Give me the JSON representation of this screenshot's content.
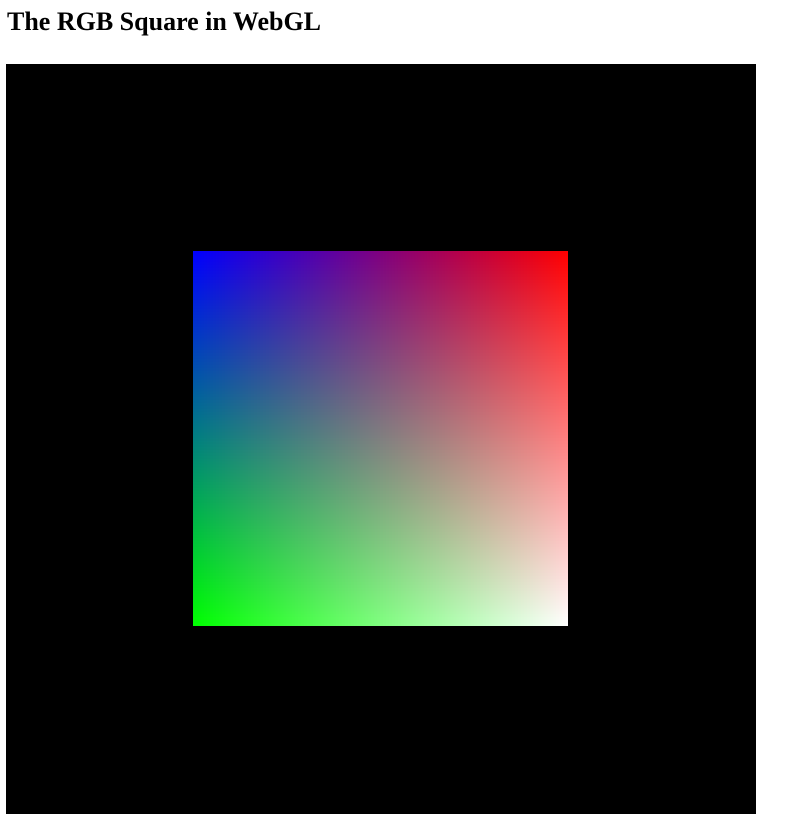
{
  "page": {
    "title": "The RGB Square in WebGL"
  },
  "canvas": {
    "background_color": "#000000"
  },
  "square": {
    "corner_colors": {
      "top_left": "#0000ff",
      "top_right": "#ff0000",
      "bottom_left": "#00ff00",
      "bottom_right": "#ffffff"
    }
  }
}
